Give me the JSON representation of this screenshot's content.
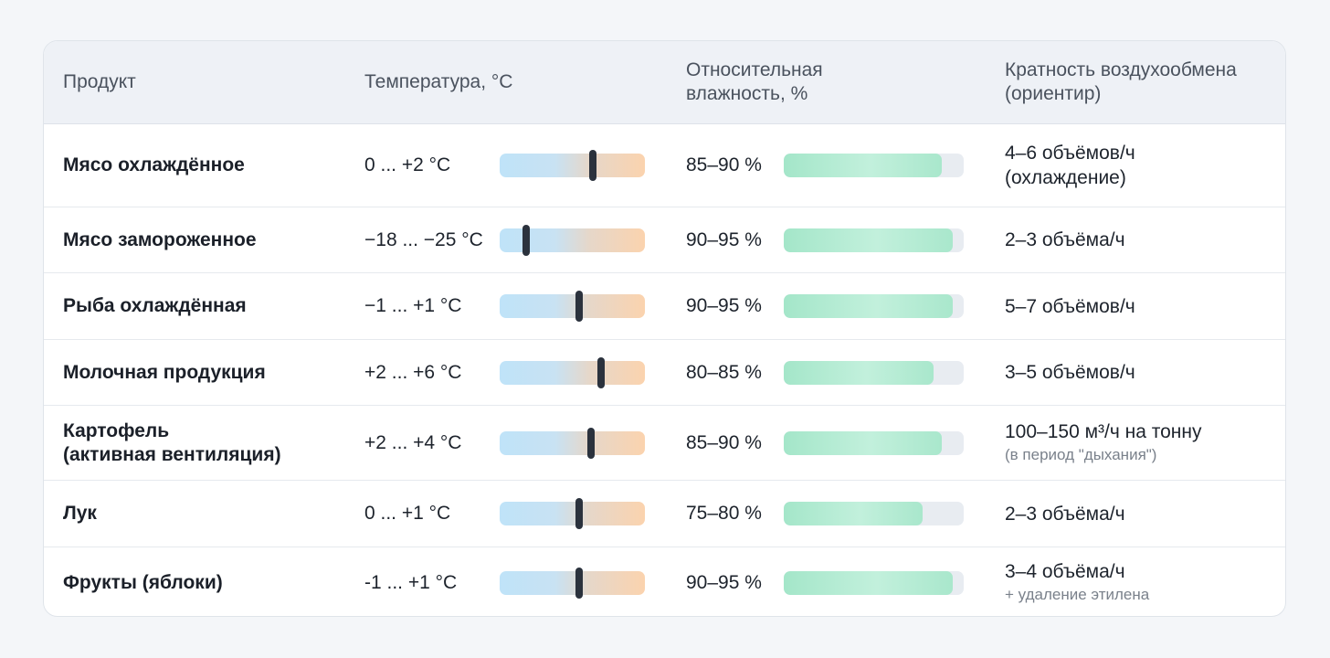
{
  "header": {
    "product": "Продукт",
    "temperature": "Температура, °C",
    "humidity_line1": "Относительная",
    "humidity_line2": "влажность, %",
    "air_line1": "Кратность воздухообмена",
    "air_line2": "(ориентир)"
  },
  "colors": {
    "temp_cold": "#bfe3f8",
    "temp_warm": "#fbd3ae",
    "marker": "#2b323d",
    "humidity_fill": "#a4e6c9",
    "humidity_track": "#e8ecf1"
  },
  "rows": [
    {
      "product_line1": "Мясо охлаждённое",
      "product_line2": "",
      "temperature": "0 ... +2 °C",
      "temp_marker": 0.64,
      "humidity": "85–90 %",
      "humidity_fill": 0.88,
      "air_line1": "4–6 объёмов/ч",
      "air_line2": "(охлаждение)",
      "air_note": ""
    },
    {
      "product_line1": "Мясо замороженное",
      "product_line2": "",
      "temperature": "−18 ... −25 °C",
      "temp_marker": 0.18,
      "humidity": "90–95 %",
      "humidity_fill": 0.94,
      "air_line1": "2–3 объёма/ч",
      "air_line2": "",
      "air_note": ""
    },
    {
      "product_line1": "Рыба охлаждённая",
      "product_line2": "",
      "temperature": "−1 ... +1 °C",
      "temp_marker": 0.55,
      "humidity": "90–95 %",
      "humidity_fill": 0.94,
      "air_line1": "5–7 объёмов/ч",
      "air_line2": "",
      "air_note": ""
    },
    {
      "product_line1": "Молочная продукция",
      "product_line2": "",
      "temperature": "+2 ... +6 °C",
      "temp_marker": 0.7,
      "humidity": "80–85 %",
      "humidity_fill": 0.83,
      "air_line1": "3–5 объёмов/ч",
      "air_line2": "",
      "air_note": ""
    },
    {
      "product_line1": "Картофель",
      "product_line2": "(активная вентиляция)",
      "temperature": "+2 ... +4 °C",
      "temp_marker": 0.63,
      "humidity": "85–90 %",
      "humidity_fill": 0.88,
      "air_line1": "100–150 м³/ч на тонну",
      "air_line2": "",
      "air_note": "(в период \"дыхания\")"
    },
    {
      "product_line1": "Лук",
      "product_line2": "",
      "temperature": "0 ... +1 °C",
      "temp_marker": 0.55,
      "humidity": "75–80 %",
      "humidity_fill": 0.77,
      "air_line1": "2–3 объёма/ч",
      "air_line2": "",
      "air_note": ""
    },
    {
      "product_line1": "Фрукты (яблоки)",
      "product_line2": "",
      "temperature": "-1 ... +1 °C",
      "temp_marker": 0.55,
      "humidity": "90–95 %",
      "humidity_fill": 0.94,
      "air_line1": "3–4 объёма/ч",
      "air_line2": "",
      "air_note": "+ удаление этилена"
    }
  ]
}
